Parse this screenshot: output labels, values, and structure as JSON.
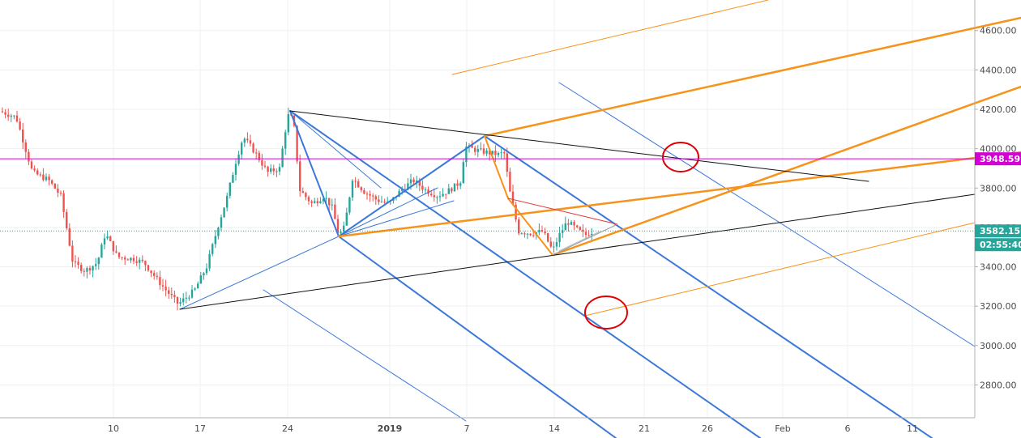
{
  "chart_data": {
    "type": "candlestick",
    "x_ticks": [
      "10",
      "17",
      "24",
      "2019",
      "7",
      "14",
      "21",
      "26",
      "Feb",
      "6",
      "11"
    ],
    "y_ticks": [
      "2800.00",
      "3000.00",
      "3200.00",
      "3400.00",
      "3600.00",
      "3800.00",
      "4000.00",
      "4200.00",
      "4400.00",
      "4600.00"
    ],
    "ylim": [
      2640,
      4700
    ],
    "horizontal_level": {
      "value": 3948.59,
      "label": "3948.59",
      "color": "#d500d5"
    },
    "last_price": {
      "value": 3582.15,
      "label": "3582.15",
      "color": "#26a69a"
    },
    "countdown": {
      "label": "02:55:40"
    },
    "colors": {
      "up": "#26a69a",
      "down": "#ef5350",
      "pitchfork_blue": "#3c78d8",
      "pitchfork_orange": "#f7931a",
      "trendline_black": "#111111",
      "circle": "#e00000"
    },
    "annotations": [
      "blue-pitchfork",
      "orange-pitchfork",
      "black-wedge-lines",
      "red-circles",
      "small-triangle"
    ]
  }
}
